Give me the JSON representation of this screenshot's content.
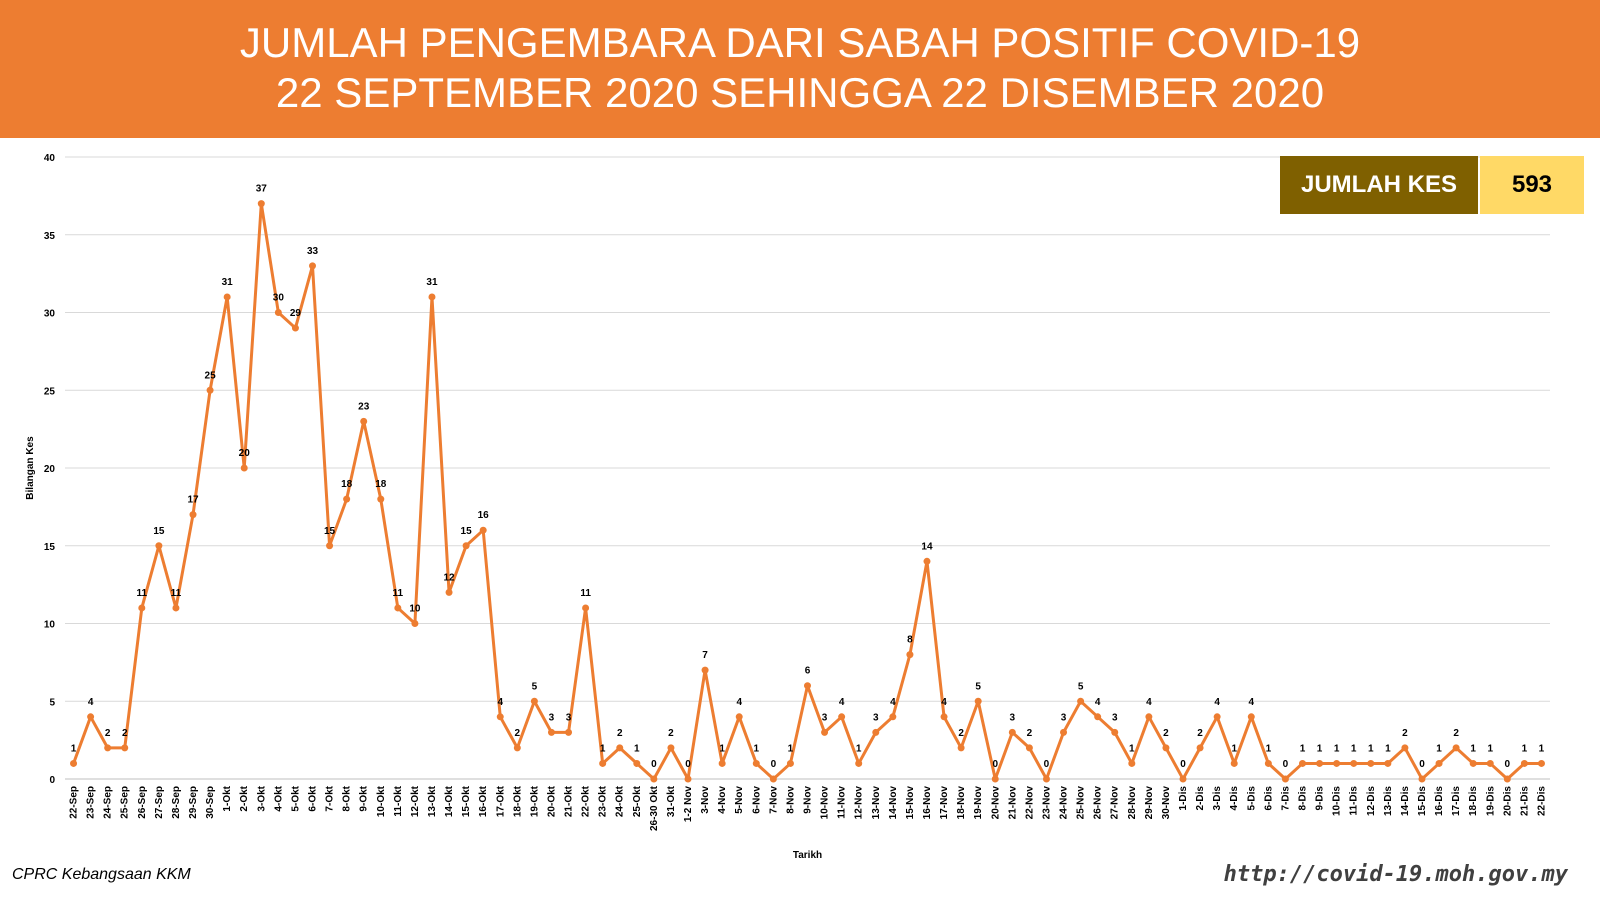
{
  "chart_data": {
    "type": "line",
    "title": "JUMLAH PENGEMBARA DARI SABAH POSITIF COVID-19",
    "subtitle": "22 SEPTEMBER 2020 SEHINGGA 22 DISEMBER 2020",
    "total": {
      "label": "JUMLAH KES",
      "value": 593
    },
    "ylabel": "Bilangan Kes",
    "xlabel": "Tarikh",
    "source": "CPRC Kebangsaan KKM",
    "url": "http://covid-19.moh.gov.my",
    "color": "#ED7D31",
    "grid": true,
    "ylim": [
      0,
      40
    ],
    "yticks": [
      0,
      5,
      10,
      15,
      20,
      25,
      30,
      35,
      40
    ],
    "categories": [
      "22-Sep",
      "23-Sep",
      "24-Sep",
      "25-Sep",
      "26-Sep",
      "27-Sep",
      "28-Sep",
      "29-Sep",
      "30-Sep",
      "1-Okt",
      "2-Okt",
      "3-Okt",
      "4-Okt",
      "5-Okt",
      "6-Okt",
      "7-Okt",
      "8-Okt",
      "9-Okt",
      "10-Okt",
      "11-Okt",
      "12-Okt",
      "13-Okt",
      "14-Okt",
      "15-Okt",
      "16-Okt",
      "17-Okt",
      "18-Okt",
      "19-Okt",
      "20-Okt",
      "21-Okt",
      "22-Okt",
      "23-Okt",
      "24-Okt",
      "25-Okt",
      "26-30 Okt",
      "31-Okt",
      "1-2 Nov",
      "3-Nov",
      "4-Nov",
      "5-Nov",
      "6-Nov",
      "7-Nov",
      "8-Nov",
      "9-Nov",
      "10-Nov",
      "11-Nov",
      "12-Nov",
      "13-Nov",
      "14-Nov",
      "15-Nov",
      "16-Nov",
      "17-Nov",
      "18-Nov",
      "19-Nov",
      "20-Nov",
      "21-Nov",
      "22-Nov",
      "23-Nov",
      "24-Nov",
      "25-Nov",
      "26-Nov",
      "27-Nov",
      "28-Nov",
      "29-Nov",
      "30-Nov",
      "1-Dis",
      "2-Dis",
      "3-Dis",
      "4-Dis",
      "5-Dis",
      "6-Dis",
      "7-Dis",
      "8-Dis",
      "9-Dis",
      "10-Dis",
      "11-Dis",
      "12-Dis",
      "13-Dis",
      "14-Dis",
      "15-Dis",
      "16-Dis",
      "17-Dis",
      "18-Dis",
      "19-Dis",
      "20-Dis",
      "21-Dis",
      "22-Dis"
    ],
    "values": [
      1,
      4,
      2,
      2,
      11,
      15,
      11,
      17,
      25,
      31,
      20,
      37,
      30,
      29,
      33,
      15,
      18,
      23,
      18,
      11,
      10,
      31,
      12,
      15,
      16,
      4,
      2,
      5,
      3,
      3,
      11,
      1,
      2,
      1,
      0,
      2,
      0,
      7,
      1,
      4,
      1,
      0,
      1,
      6,
      3,
      4,
      1,
      3,
      4,
      8,
      14,
      4,
      2,
      5,
      0,
      3,
      2,
      0,
      3,
      5,
      4,
      3,
      1,
      4,
      2,
      0,
      2,
      4,
      1,
      4,
      1,
      0,
      1,
      1,
      1,
      1,
      1,
      1,
      2,
      0,
      1,
      2,
      1,
      1,
      0,
      1,
      1
    ]
  }
}
